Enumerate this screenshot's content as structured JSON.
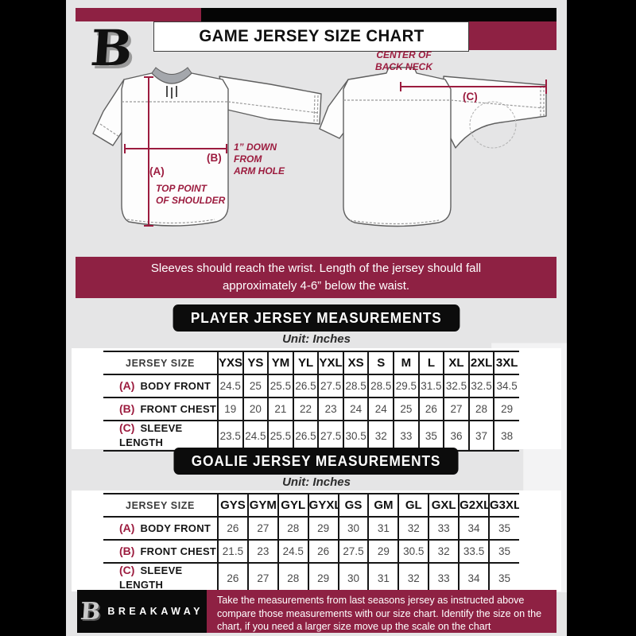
{
  "colors": {
    "maroon": "#8e2143",
    "annotation": "#9c1c3f",
    "page_bg": "#e5e5e6",
    "edge": "#000000"
  },
  "header": {
    "title": "GAME JERSEY SIZE CHART",
    "logo_monogram": "B"
  },
  "diagram": {
    "front": {
      "label_a": "(A)",
      "label_a_caption": "TOP POINT\nOF SHOULDER",
      "label_b": "(B)",
      "label_b_caption": "1” DOWN\nFROM\nARM HOLE"
    },
    "back": {
      "label_c": "(C)",
      "label_c_caption": "CENTER OF\nBACK NECK"
    }
  },
  "banner": {
    "text": "Sleeves should reach the wrist. Length of the jersey should fall approximately 4-6” below the waist."
  },
  "player_section": {
    "heading": "PLAYER JERSEY MEASUREMENTS",
    "unit": "Unit: Inches",
    "table": {
      "corner_label": "JERSEY SIZE",
      "columns": [
        "YXS",
        "YS",
        "YM",
        "YL",
        "YXL",
        "XS",
        "S",
        "M",
        "L",
        "XL",
        "2XL",
        "3XL"
      ],
      "rows": [
        {
          "prefix": "(A)",
          "label": "BODY FRONT",
          "values": [
            "24.5",
            "25",
            "25.5",
            "26.5",
            "27.5",
            "28.5",
            "28.5",
            "29.5",
            "31.5",
            "32.5",
            "32.5",
            "34.5"
          ]
        },
        {
          "prefix": "(B)",
          "label": "FRONT CHEST",
          "values": [
            "19",
            "20",
            "21",
            "22",
            "23",
            "24",
            "24",
            "25",
            "26",
            "27",
            "28",
            "29"
          ]
        },
        {
          "prefix": "(C)",
          "label": "SLEEVE LENGTH",
          "values": [
            "23.5",
            "24.5",
            "25.5",
            "26.5",
            "27.5",
            "30.5",
            "32",
            "33",
            "35",
            "36",
            "37",
            "38"
          ]
        }
      ]
    }
  },
  "goalie_section": {
    "heading": "GOALIE JERSEY MEASUREMENTS",
    "unit": "Unit: Inches",
    "table": {
      "corner_label": "JERSEY SIZE",
      "columns": [
        "GYS",
        "GYM",
        "GYL",
        "GYXL",
        "GS",
        "GM",
        "GL",
        "GXL",
        "G2XL",
        "G3XL"
      ],
      "rows": [
        {
          "prefix": "(A)",
          "label": "BODY FRONT",
          "values": [
            "26",
            "27",
            "28",
            "29",
            "30",
            "31",
            "32",
            "33",
            "34",
            "35"
          ]
        },
        {
          "prefix": "(B)",
          "label": "FRONT CHEST",
          "values": [
            "21.5",
            "23",
            "24.5",
            "26",
            "27.5",
            "29",
            "30.5",
            "32",
            "33.5",
            "35"
          ]
        },
        {
          "prefix": "(C)",
          "label": "SLEEVE LENGTH",
          "values": [
            "26",
            "27",
            "28",
            "29",
            "30",
            "31",
            "32",
            "33",
            "34",
            "35"
          ]
        }
      ]
    }
  },
  "footer": {
    "brand": "BREAKAWAY",
    "logo_monogram": "B",
    "note": "Take the measurements from last seasons jersey as instructed above compare those measurements  with our size chart. Identify the size on the chart, if you need a larger size move up the scale on the chart"
  }
}
